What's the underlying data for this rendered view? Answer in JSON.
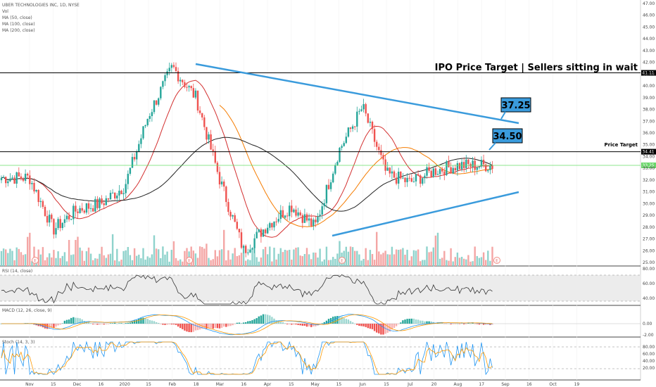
{
  "chart_data": {
    "type": "candlestick",
    "legend": {
      "title": "UBER TECHNOLOGIES INC, 1D, NYSE",
      "vol": "Vol",
      "ma50": "MA (50, close)",
      "ma100": "MA (100, close)",
      "ma200": "MA (200, close)"
    },
    "headline": "IPO Price Target | Sellers sitting in wait",
    "price_target_label": "Price Target",
    "callouts": {
      "upper": "37.25",
      "lower": "34.50"
    },
    "price_tags": {
      "ipo": "41.11",
      "target": "34.41",
      "last": "33.25"
    },
    "ipo_price": 41.11,
    "target_price": 34.41,
    "last_price": 33.25,
    "y_axis_ticks": [
      "47.00",
      "46.00",
      "45.00",
      "44.00",
      "43.00",
      "42.00",
      "41.00",
      "40.00",
      "39.00",
      "38.00",
      "37.00",
      "36.00",
      "35.00",
      "34.00",
      "33.00",
      "32.00",
      "31.00",
      "30.00",
      "29.00",
      "28.00",
      "27.00",
      "26.00",
      "25.00"
    ],
    "y_range": [
      24.7,
      47.3
    ],
    "x_axis_labels": [
      "Nov",
      "15",
      "Dec",
      "16",
      "2020",
      "15",
      "Feb",
      "18",
      "Mar",
      "16",
      "Apr",
      "15",
      "May",
      "15",
      "Jun",
      "15",
      "Jul",
      "20",
      "Aug",
      "17",
      "Sep",
      "16",
      "Oct",
      "19"
    ],
    "price_path": [
      {
        "m": "Nov",
        "v": 32.2
      },
      {
        "m": "15",
        "v": 27.8
      },
      {
        "m": "Dec",
        "v": 29.5
      },
      {
        "m": "16",
        "v": 30.0
      },
      {
        "m": "2020",
        "v": 31.5
      },
      {
        "m": "15",
        "v": 37.5
      },
      {
        "m": "Feb",
        "v": 41.6
      },
      {
        "m": "18",
        "v": 39.0
      },
      {
        "m": "Mar",
        "v": 32.0
      },
      {
        "m": "16",
        "v": 26.0
      },
      {
        "m": "Apr",
        "v": 28.2
      },
      {
        "m": "15",
        "v": 29.8
      },
      {
        "m": "May",
        "v": 28.0
      },
      {
        "m": "15",
        "v": 34.5
      },
      {
        "m": "Jun",
        "v": 38.2
      },
      {
        "m": "15",
        "v": 32.5
      },
      {
        "m": "Jul",
        "v": 31.8
      },
      {
        "m": "20",
        "v": 32.8
      },
      {
        "m": "Aug",
        "v": 33.25
      }
    ],
    "ma_lines": [
      "MA 50",
      "MA 100",
      "MA 200"
    ],
    "earnings_markers": [
      "E",
      "E",
      "E",
      "E"
    ],
    "panels": {
      "rsi": {
        "label": "RSI (14, close)",
        "ticks": [
          "80.00",
          "60.00",
          "40.00"
        ]
      },
      "macd": {
        "label": "MACD (12, 26, close, 9)",
        "ticks": [
          "0.00",
          "-2.00"
        ]
      },
      "stoch": {
        "label": "Stoch (14, 3, 3)",
        "ticks": [
          "80.00",
          "60.00",
          "40.00",
          "20.00"
        ]
      }
    }
  }
}
